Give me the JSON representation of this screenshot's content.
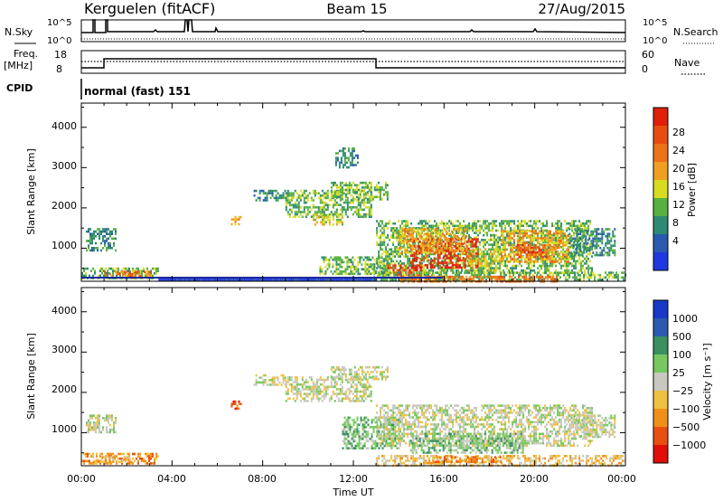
{
  "header": {
    "station": "Kerguelen (fitACF)",
    "beam": "Beam 15",
    "date": "27/Aug/2015"
  },
  "noise_panel": {
    "left_label": "N.Sky",
    "right_label": "N.Search",
    "left_ticks": [
      "10^5",
      "10^0"
    ],
    "right_ticks": [
      "10^5",
      "10^0"
    ]
  },
  "freq_panel": {
    "left_label_1": "Freq.",
    "left_label_2": "[MHz]",
    "right_label": "Nave",
    "left_ticks": [
      "18",
      "8"
    ],
    "right_ticks": [
      "60",
      "0"
    ]
  },
  "cpid": {
    "label": "CPID",
    "mode_text": "normal (fast) 151"
  },
  "chart_data": [
    {
      "type": "heatmap",
      "name": "Power panel",
      "ylabel": "Slant Range [km]",
      "xlabel": "Time UT",
      "ylim": [
        180,
        4600
      ],
      "xlim_hours": [
        0,
        24
      ],
      "x_ticks": [
        "00:00",
        "04:00",
        "08:00",
        "12:00",
        "16:00",
        "20:00",
        "00:00"
      ],
      "y_ticks": [
        "1000",
        "2000",
        "3000",
        "4000"
      ],
      "colorbar": {
        "label": "Power [dB]",
        "ticks": [
          "4",
          "8",
          "12",
          "16",
          "20",
          "24",
          "28"
        ],
        "colors": [
          "#2038e0",
          "#2a5ab0",
          "#2e8a72",
          "#58b040",
          "#d8dc20",
          "#f0a020",
          "#ec7218",
          "#e84c10",
          "#e02008"
        ]
      },
      "regions": [
        {
          "t0": 0.2,
          "t1": 1.5,
          "r0": 950,
          "r1": 1500,
          "level": 2
        },
        {
          "t0": 0.0,
          "t1": 3.4,
          "r0": 230,
          "r1": 520,
          "level": 3
        },
        {
          "t0": 1.0,
          "t1": 3.0,
          "r0": 300,
          "r1": 440,
          "level": 6
        },
        {
          "t0": 3.4,
          "t1": 13.0,
          "r0": 200,
          "r1": 250,
          "level": 0
        },
        {
          "t0": 6.6,
          "t1": 7.0,
          "r0": 1580,
          "r1": 1800,
          "level": 5
        },
        {
          "t0": 7.6,
          "t1": 9.0,
          "r0": 2200,
          "r1": 2450,
          "level": 2
        },
        {
          "t0": 9.0,
          "t1": 12.8,
          "r0": 1750,
          "r1": 2450,
          "level": 3
        },
        {
          "t0": 10.2,
          "t1": 11.5,
          "r0": 1600,
          "r1": 1850,
          "level": 4
        },
        {
          "t0": 11.0,
          "t1": 13.5,
          "r0": 2200,
          "r1": 2650,
          "level": 3
        },
        {
          "t0": 11.2,
          "t1": 12.2,
          "r0": 3000,
          "r1": 3500,
          "level": 2
        },
        {
          "t0": 10.5,
          "t1": 13.5,
          "r0": 350,
          "r1": 800,
          "level": 3
        },
        {
          "t0": 13.0,
          "t1": 22.5,
          "r0": 380,
          "r1": 1700,
          "level": 3
        },
        {
          "t0": 13.5,
          "t1": 15.0,
          "r0": 350,
          "r1": 600,
          "level": 7
        },
        {
          "t0": 14.5,
          "t1": 17.5,
          "r0": 500,
          "r1": 1250,
          "level": 8
        },
        {
          "t0": 14.0,
          "t1": 17.0,
          "r0": 900,
          "r1": 1500,
          "level": 5
        },
        {
          "t0": 17.0,
          "t1": 18.5,
          "r0": 450,
          "r1": 1000,
          "level": 4
        },
        {
          "t0": 18.5,
          "t1": 21.5,
          "r0": 650,
          "r1": 1450,
          "level": 5
        },
        {
          "t0": 19.2,
          "t1": 20.5,
          "r0": 750,
          "r1": 1100,
          "level": 7
        },
        {
          "t0": 21.5,
          "t1": 23.5,
          "r0": 850,
          "r1": 1500,
          "level": 2
        },
        {
          "t0": 12.8,
          "t1": 24.0,
          "r0": 200,
          "r1": 420,
          "level": 3
        },
        {
          "t0": 14.0,
          "t1": 21.0,
          "r0": 200,
          "r1": 320,
          "level": 6
        }
      ]
    },
    {
      "type": "heatmap",
      "name": "Velocity panel",
      "ylabel": "Slant Range [km]",
      "xlabel": "Time UT",
      "ylim": [
        180,
        4600
      ],
      "xlim_hours": [
        0,
        24
      ],
      "x_ticks": [
        "00:00",
        "04:00",
        "08:00",
        "12:00",
        "16:00",
        "20:00",
        "00:00"
      ],
      "y_ticks": [
        "1000",
        "2000",
        "3000",
        "4000"
      ],
      "colorbar": {
        "label": "Velocity [m s⁻¹]",
        "ticks": [
          "1000",
          "500",
          "100",
          "25",
          "−25",
          "−100",
          "−500",
          "−1000"
        ],
        "colors": [
          "#1838c8",
          "#2a5ab0",
          "#3a9060",
          "#78c860",
          "#c8c8c0",
          "#f0c040",
          "#f09018",
          "#e85010",
          "#e01008"
        ]
      },
      "regions": [
        {
          "t0": 0.2,
          "t1": 1.5,
          "r0": 1000,
          "r1": 1450,
          "level": 4
        },
        {
          "t0": 0.0,
          "t1": 3.4,
          "r0": 230,
          "r1": 500,
          "level": 6
        },
        {
          "t0": 0.5,
          "t1": 2.2,
          "r0": 250,
          "r1": 420,
          "level": 5
        },
        {
          "t0": 6.6,
          "t1": 7.0,
          "r0": 1600,
          "r1": 1800,
          "level": 7
        },
        {
          "t0": 7.6,
          "t1": 9.0,
          "r0": 2200,
          "r1": 2450,
          "level": 4
        },
        {
          "t0": 9.0,
          "t1": 12.8,
          "r0": 1800,
          "r1": 2400,
          "level": 4
        },
        {
          "t0": 11.0,
          "t1": 13.5,
          "r0": 2300,
          "r1": 2650,
          "level": 4
        },
        {
          "t0": 11.5,
          "t1": 14.0,
          "r0": 600,
          "r1": 1400,
          "level": 3
        },
        {
          "t0": 13.0,
          "t1": 22.5,
          "r0": 700,
          "r1": 1700,
          "level": 4
        },
        {
          "t0": 14.5,
          "t1": 19.5,
          "r0": 500,
          "r1": 1000,
          "level": 3
        },
        {
          "t0": 13.0,
          "t1": 24.0,
          "r0": 200,
          "r1": 450,
          "level": 5
        },
        {
          "t0": 15.5,
          "t1": 18.5,
          "r0": 250,
          "r1": 420,
          "level": 6
        },
        {
          "t0": 21.5,
          "t1": 23.5,
          "r0": 900,
          "r1": 1450,
          "level": 4
        }
      ]
    }
  ]
}
